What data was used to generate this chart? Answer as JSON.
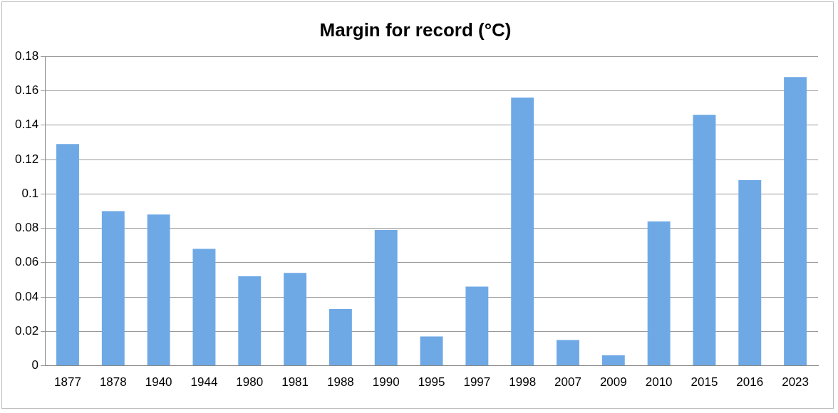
{
  "chart_data": {
    "type": "bar",
    "title": "Margin for record (°C)",
    "categories": [
      "1877",
      "1878",
      "1940",
      "1944",
      "1980",
      "1981",
      "1988",
      "1990",
      "1995",
      "1997",
      "1998",
      "2007",
      "2009",
      "2010",
      "2015",
      "2016",
      "2023"
    ],
    "values": [
      0.129,
      0.09,
      0.088,
      0.068,
      0.052,
      0.054,
      0.033,
      0.079,
      0.017,
      0.046,
      0.156,
      0.015,
      0.006,
      0.084,
      0.146,
      0.108,
      0.168
    ],
    "color": "#6ea9e6",
    "ylim": [
      0,
      0.18
    ],
    "yticks": [
      0,
      0.02,
      0.04,
      0.06,
      0.08,
      {
        "value": 0.1,
        "label": "0.1"
      },
      0.12,
      0.14,
      0.16,
      0.18
    ],
    "grid": "y"
  }
}
